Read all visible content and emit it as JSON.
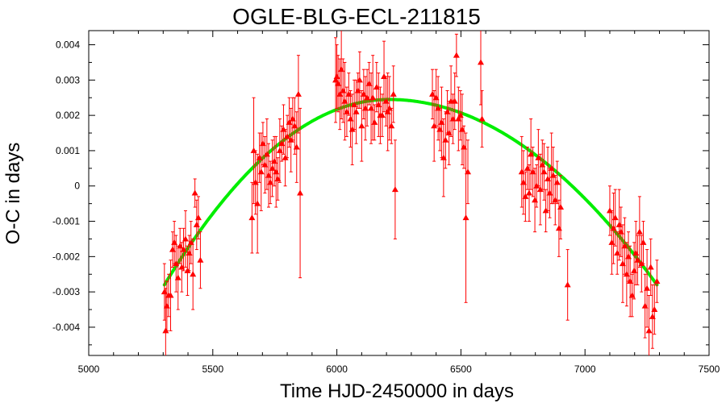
{
  "chart_data": {
    "type": "scatter",
    "title": "OGLE-BLG-ECL-211815",
    "xlabel": "Time HJD-2450000 in days",
    "ylabel": "O-C in days",
    "xlim": [
      5000,
      7500
    ],
    "ylim": [
      -0.0048,
      0.0044
    ],
    "xticks": [
      5000,
      5500,
      6000,
      6500,
      7000,
      7500
    ],
    "xtick_labels": [
      "5000",
      "5500",
      "6000",
      "6500",
      "7000",
      "7500"
    ],
    "yticks": [
      -0.004,
      -0.003,
      -0.002,
      -0.001,
      0,
      0.001,
      0.002,
      0.003,
      0.004
    ],
    "ytick_labels": [
      "-0.004",
      "-0.003",
      "-0.002",
      "-0.001",
      "0",
      "0.001",
      "0.002",
      "0.003",
      "0.004"
    ],
    "grid": false,
    "colors": {
      "points": "#ff0000",
      "fit": "#00ee00",
      "frame": "#000000"
    },
    "series": [
      {
        "kind": "points_with_errorbars",
        "x": [
          5305,
          5310,
          5315,
          5322,
          5330,
          5338,
          5345,
          5352,
          5360,
          5368,
          5375,
          5382,
          5390,
          5398,
          5405,
          5412,
          5420,
          5428,
          5435,
          5442,
          5450,
          5658,
          5665,
          5672,
          5680,
          5688,
          5695,
          5702,
          5710,
          5718,
          5725,
          5732,
          5740,
          5748,
          5755,
          5762,
          5770,
          5778,
          5785,
          5792,
          5800,
          5808,
          5815,
          5822,
          5830,
          5838,
          5845,
          5852,
          5995,
          6000,
          6005,
          6012,
          6018,
          6025,
          6032,
          6040,
          6048,
          6055,
          6062,
          6070,
          6078,
          6085,
          6092,
          6100,
          6108,
          6115,
          6122,
          6130,
          6138,
          6145,
          6152,
          6160,
          6168,
          6175,
          6183,
          6190,
          6198,
          6205,
          6212,
          6220,
          6228,
          6235,
          6385,
          6392,
          6400,
          6408,
          6415,
          6422,
          6430,
          6438,
          6445,
          6452,
          6460,
          6468,
          6475,
          6482,
          6490,
          6498,
          6505,
          6512,
          6520,
          6528,
          6580,
          6585,
          6745,
          6752,
          6760,
          6768,
          6775,
          6782,
          6790,
          6798,
          6805,
          6812,
          6820,
          6828,
          6835,
          6842,
          6850,
          6858,
          6865,
          6872,
          6880,
          6888,
          6895,
          6902,
          6930,
          7100,
          7108,
          7115,
          7122,
          7130,
          7138,
          7145,
          7152,
          7160,
          7168,
          7175,
          7182,
          7190,
          7198,
          7205,
          7212,
          7220,
          7228,
          7235,
          7242,
          7250,
          7258,
          7265,
          7272,
          7280,
          7290
        ],
        "y": [
          -0.003,
          -0.0041,
          -0.0034,
          -0.0031,
          -0.0031,
          -0.0018,
          -0.0016,
          -0.0022,
          -0.0026,
          -0.0017,
          -0.0023,
          -0.0018,
          -0.0015,
          -0.0024,
          -0.0019,
          -0.0016,
          -0.0025,
          -0.0002,
          -0.0011,
          -0.0009,
          -0.0021,
          -0.0009,
          0.001,
          0.0001,
          -0.0005,
          0.0008,
          0.0004,
          0.0012,
          0.0006,
          0.0009,
          0.0003,
          0.0001,
          0.0005,
          0.0007,
          0.0004,
          0.0002,
          0.001,
          0.0012,
          0.0016,
          0.0008,
          0.0014,
          0.0018,
          0.0013,
          0.0019,
          0.0017,
          0.0011,
          0.0026,
          -0.0002,
          0.003,
          0.0031,
          0.0029,
          0.0026,
          0.0033,
          0.0027,
          0.0024,
          0.0021,
          0.0026,
          0.0019,
          0.0016,
          0.0023,
          0.0021,
          0.0027,
          0.003,
          0.0017,
          0.0026,
          0.0022,
          0.0025,
          0.0029,
          0.0022,
          0.0025,
          0.0018,
          0.0028,
          0.0023,
          0.002,
          0.002,
          0.0031,
          0.0024,
          0.0021,
          0.0022,
          0.0017,
          0.0026,
          -0.0001,
          0.0026,
          0.0017,
          0.0025,
          0.0022,
          0.0016,
          0.0018,
          0.0008,
          0.0013,
          0.0021,
          0.0015,
          0.0024,
          0.0019,
          0.0024,
          0.0037,
          0.0019,
          0.002,
          0.0016,
          0.0011,
          -0.0009,
          0.0004,
          0.0035,
          0.0019,
          0.0004,
          0.0001,
          -0.0003,
          0.0005,
          -0.0002,
          0.0009,
          0.0004,
          -0.0004,
          0.0,
          0.0008,
          -0.0001,
          0.0006,
          0.0004,
          -0.0007,
          0.0002,
          -0.0002,
          0.0005,
          0.0003,
          -0.0004,
          0.0001,
          -0.0012,
          -0.0006,
          -0.0028,
          -0.0007,
          -0.0016,
          -0.0012,
          -0.0009,
          -0.0019,
          -0.0011,
          -0.0013,
          -0.0022,
          -0.0017,
          -0.0025,
          -0.002,
          -0.0027,
          -0.0031,
          -0.0024,
          -0.0019,
          -0.0021,
          -0.0013,
          -0.0022,
          -0.0016,
          -0.0034,
          -0.0029,
          -0.0041,
          -0.0023,
          -0.0037,
          -0.0035,
          -0.0027
        ],
        "err": [
          0.0008,
          0.0012,
          0.0007,
          0.0006,
          0.001,
          0.0005,
          0.0006,
          0.0008,
          0.0009,
          0.0005,
          0.0007,
          0.0006,
          0.0008,
          0.0007,
          0.0005,
          0.0006,
          0.001,
          0.0004,
          0.0007,
          0.0006,
          0.0008,
          0.001,
          0.0015,
          0.0009,
          0.0014,
          0.0007,
          0.0011,
          0.0006,
          0.0008,
          0.001,
          0.0009,
          0.0006,
          0.0008,
          0.0007,
          0.001,
          0.0006,
          0.0009,
          0.0005,
          0.0007,
          0.0008,
          0.0006,
          0.0007,
          0.0009,
          0.0006,
          0.0008,
          0.001,
          0.0011,
          0.0024,
          0.0012,
          0.0009,
          0.0008,
          0.001,
          0.0014,
          0.0009,
          0.0011,
          0.0007,
          0.0006,
          0.0008,
          0.001,
          0.0007,
          0.0009,
          0.0005,
          0.0008,
          0.001,
          0.0007,
          0.0009,
          0.0008,
          0.0006,
          0.001,
          0.0012,
          0.0005,
          0.0007,
          0.0009,
          0.0008,
          0.0006,
          0.001,
          0.0007,
          0.0011,
          0.0009,
          0.0005,
          0.0008,
          0.0014,
          0.0007,
          0.001,
          0.0008,
          0.0009,
          0.0006,
          0.001,
          0.0011,
          0.0008,
          0.0006,
          0.0009,
          0.001,
          0.0007,
          0.0008,
          0.0006,
          0.0009,
          0.0007,
          0.001,
          0.0006,
          0.0024,
          0.0009,
          0.0012,
          0.0008,
          0.001,
          0.0009,
          0.0007,
          0.0006,
          0.0008,
          0.001,
          0.0007,
          0.0009,
          0.0006,
          0.0008,
          0.001,
          0.0007,
          0.0008,
          0.0006,
          0.0009,
          0.0007,
          0.001,
          0.0008,
          0.0007,
          0.0006,
          0.0008,
          0.0009,
          0.001,
          0.0007,
          0.0009,
          0.001,
          0.0008,
          0.0006,
          0.001,
          0.0007,
          0.0011,
          0.0008,
          0.0009,
          0.0007,
          0.001,
          0.0006,
          0.0008,
          0.0009,
          0.0007,
          0.001,
          0.0008,
          0.0006,
          0.0009,
          0.0011,
          0.001,
          0.0008,
          0.0009,
          0.0007,
          0.0006
        ]
      },
      {
        "kind": "fit_curve",
        "x_range": [
          5305,
          7290
        ],
        "peak_x": 6210,
        "peak_y": 0.00245,
        "end_y": -0.0028
      }
    ]
  }
}
